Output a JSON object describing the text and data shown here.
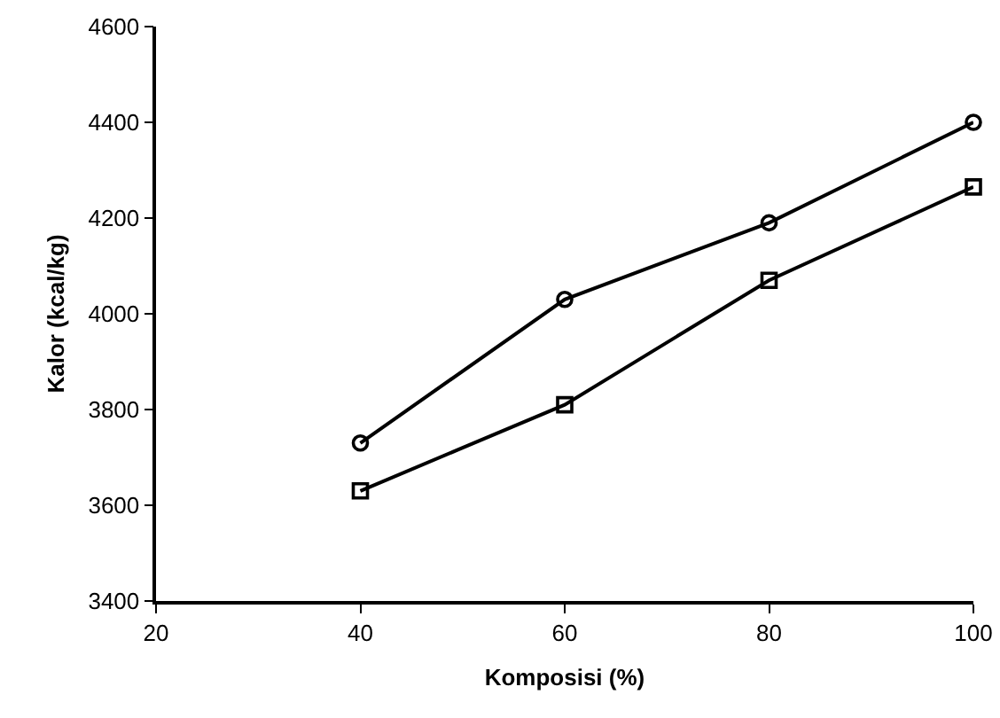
{
  "chart_data": {
    "type": "line",
    "xlabel": "Komposisi (%)",
    "ylabel": "Kalor (kcal/kg)",
    "x": [
      40,
      60,
      80,
      100
    ],
    "series": [
      {
        "color": "#000000",
        "marker": "circle",
        "values": [
          3730,
          4030,
          4190,
          4400
        ]
      },
      {
        "color": "#000000",
        "marker": "square",
        "values": [
          3630,
          3810,
          4070,
          4265
        ]
      }
    ],
    "xlim": [
      20,
      100
    ],
    "xticks": [
      20,
      40,
      60,
      80,
      100
    ],
    "ylim": [
      3400,
      4600
    ],
    "yticks": [
      3400,
      3600,
      3800,
      4000,
      4200,
      4400,
      4600
    ],
    "grid": false,
    "line_style": "solid"
  }
}
